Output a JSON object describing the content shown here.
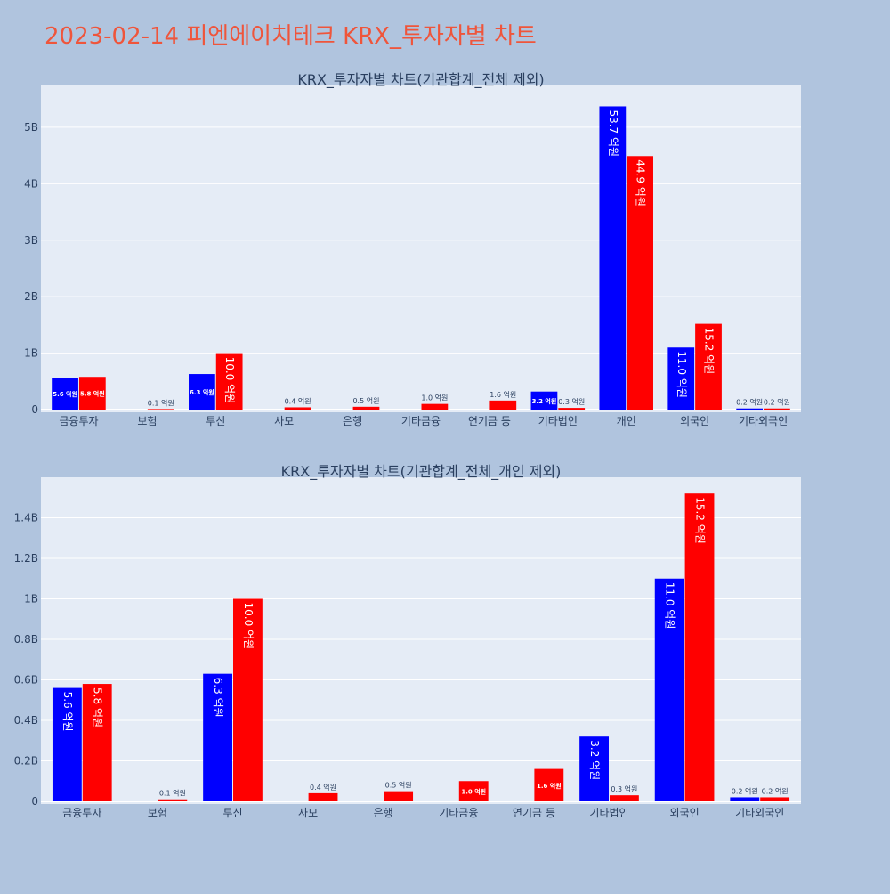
{
  "page_title": "2023-02-14 피엔에이치테크 KRX_투자자별 차트",
  "colors": {
    "background": "#b0c4de",
    "plot_bg": "#e5ecf6",
    "title": "#ef553b",
    "buy": "#0000ff",
    "sell": "#ff0000"
  },
  "chart_data": [
    {
      "type": "bar",
      "title": "KRX_투자자별 차트(기관합계_전체 제외)",
      "categories": [
        "금융투자",
        "보험",
        "투신",
        "사모",
        "은행",
        "기타금융",
        "연기금 등",
        "기타법인",
        "개인",
        "외국인",
        "기타외국인"
      ],
      "series": [
        {
          "color": "#0000ff",
          "values": [
            560000000,
            0,
            630000000,
            0,
            0,
            0,
            0,
            320000000,
            5370000000,
            1100000000,
            20000000
          ],
          "labels": [
            "5.6 억원",
            "",
            "6.3 억원",
            "",
            "",
            "",
            "",
            "3.2 억원",
            "53.7 억원",
            "11.0 억원",
            "0.2 억원"
          ]
        },
        {
          "color": "#ff0000",
          "values": [
            580000000,
            10000000,
            1000000000,
            40000000,
            50000000,
            100000000,
            160000000,
            30000000,
            4490000000,
            1520000000,
            20000000
          ],
          "labels": [
            "5.8 억원",
            "0.1 억원",
            "10.0 억원",
            "0.4 억원",
            "0.5 억원",
            "1.0 억원",
            "1.6 억원",
            "0.3 억원",
            "44.9 억원",
            "15.2 억원",
            "0.2 억원"
          ]
        }
      ],
      "yticks": [
        0,
        1000000000,
        2000000000,
        3000000000,
        4000000000,
        5000000000
      ],
      "ytick_labels": [
        "0",
        "1B",
        "2B",
        "3B",
        "4B",
        "5B"
      ],
      "ylim": [
        0,
        5740000000
      ],
      "grid": true
    },
    {
      "type": "bar",
      "title": "KRX_투자자별 차트(기관합계_전체_개인 제외)",
      "categories": [
        "금융투자",
        "보험",
        "투신",
        "사모",
        "은행",
        "기타금융",
        "연기금 등",
        "기타법인",
        "외국인",
        "기타외국인"
      ],
      "series": [
        {
          "color": "#0000ff",
          "values": [
            560000000,
            0,
            630000000,
            0,
            0,
            0,
            0,
            320000000,
            1100000000,
            20000000
          ],
          "labels": [
            "5.6 억원",
            "",
            "6.3 억원",
            "",
            "",
            "",
            "",
            "3.2 억원",
            "11.0 억원",
            "0.2 억원"
          ]
        },
        {
          "color": "#ff0000",
          "values": [
            580000000,
            10000000,
            1000000000,
            40000000,
            50000000,
            100000000,
            160000000,
            30000000,
            1520000000,
            20000000
          ],
          "labels": [
            "5.8 억원",
            "0.1 억원",
            "10.0 억원",
            "0.4 억원",
            "0.5 억원",
            "1.0 억원",
            "1.6 억원",
            "0.3 억원",
            "15.2 억원",
            "0.2 억원"
          ]
        }
      ],
      "yticks": [
        0,
        200000000,
        400000000,
        600000000,
        800000000,
        1000000000,
        1200000000,
        1400000000
      ],
      "ytick_labels": [
        "0",
        "0.2B",
        "0.4B",
        "0.6B",
        "0.8B",
        "1B",
        "1.2B",
        "1.4B"
      ],
      "ylim": [
        0,
        1600000000
      ],
      "grid": true
    }
  ]
}
